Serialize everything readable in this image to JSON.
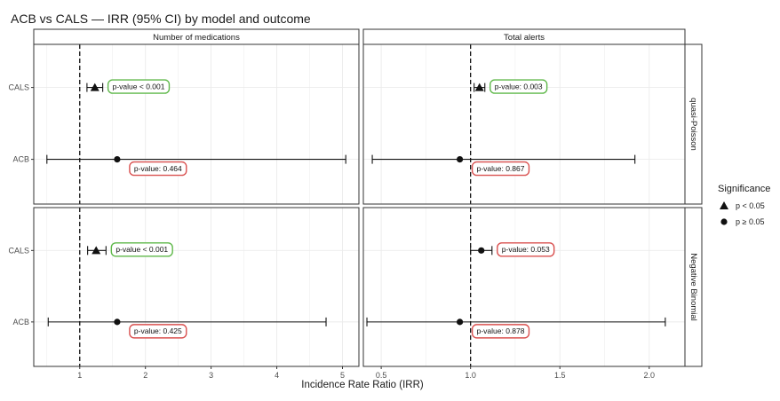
{
  "chart_data": {
    "type": "forest",
    "title": "ACB vs CALS — IRR (95% CI) by model and outcome",
    "xlabel": "Incidence Rate Ratio (IRR)",
    "categories": [
      "CALS",
      "ACB"
    ],
    "reference_line": 1,
    "columns": [
      {
        "label": "Number of medications",
        "xlim": [
          0.3,
          5.25
        ],
        "ticks": [
          1,
          2,
          3,
          4,
          5
        ]
      },
      {
        "label": "Total alerts",
        "xlim": [
          0.4,
          2.2
        ],
        "ticks": [
          0.5,
          1.0,
          1.5,
          2.0
        ]
      }
    ],
    "rows": [
      {
        "label": "quasi-Poisson"
      },
      {
        "label": "Negative Binomial"
      }
    ],
    "panels": [
      {
        "column": 0,
        "row": 0,
        "points": [
          {
            "group": "CALS",
            "irr": 1.23,
            "lo": 1.11,
            "hi": 1.35,
            "significance": "p < 0.05",
            "pvalue_label": "p-value < 0.001"
          },
          {
            "group": "ACB",
            "irr": 1.57,
            "lo": 0.5,
            "hi": 5.05,
            "significance": "p ≥ 0.05",
            "pvalue_label": "p-value: 0.464"
          }
        ]
      },
      {
        "column": 1,
        "row": 0,
        "points": [
          {
            "group": "CALS",
            "irr": 1.05,
            "lo": 1.02,
            "hi": 1.08,
            "significance": "p < 0.05",
            "pvalue_label": "p-value: 0.003"
          },
          {
            "group": "ACB",
            "irr": 0.94,
            "lo": 0.45,
            "hi": 1.92,
            "significance": "p ≥ 0.05",
            "pvalue_label": "p-value: 0.867"
          }
        ]
      },
      {
        "column": 0,
        "row": 1,
        "points": [
          {
            "group": "CALS",
            "irr": 1.25,
            "lo": 1.12,
            "hi": 1.4,
            "significance": "p < 0.05",
            "pvalue_label": "p-value < 0.001"
          },
          {
            "group": "ACB",
            "irr": 1.57,
            "lo": 0.52,
            "hi": 4.75,
            "significance": "p ≥ 0.05",
            "pvalue_label": "p-value: 0.425"
          }
        ]
      },
      {
        "column": 1,
        "row": 1,
        "points": [
          {
            "group": "CALS",
            "irr": 1.06,
            "lo": 1.0,
            "hi": 1.12,
            "significance": "p ≥ 0.05",
            "pvalue_label": "p-value: 0.053"
          },
          {
            "group": "ACB",
            "irr": 0.94,
            "lo": 0.42,
            "hi": 2.09,
            "significance": "p ≥ 0.05",
            "pvalue_label": "p-value: 0.878"
          }
        ]
      }
    ],
    "legend": {
      "title": "Significance",
      "position": "right",
      "items": [
        {
          "label": "p < 0.05",
          "shape": "triangle"
        },
        {
          "label": "p ≥ 0.05",
          "shape": "circle"
        }
      ]
    },
    "grid": true,
    "colors": {
      "significant_box": "#5fb84a",
      "nonsignificant_box": "#d9504f",
      "strip_fill": "#ffffff",
      "grid": "#ebebeb",
      "mark": "#111111"
    }
  }
}
